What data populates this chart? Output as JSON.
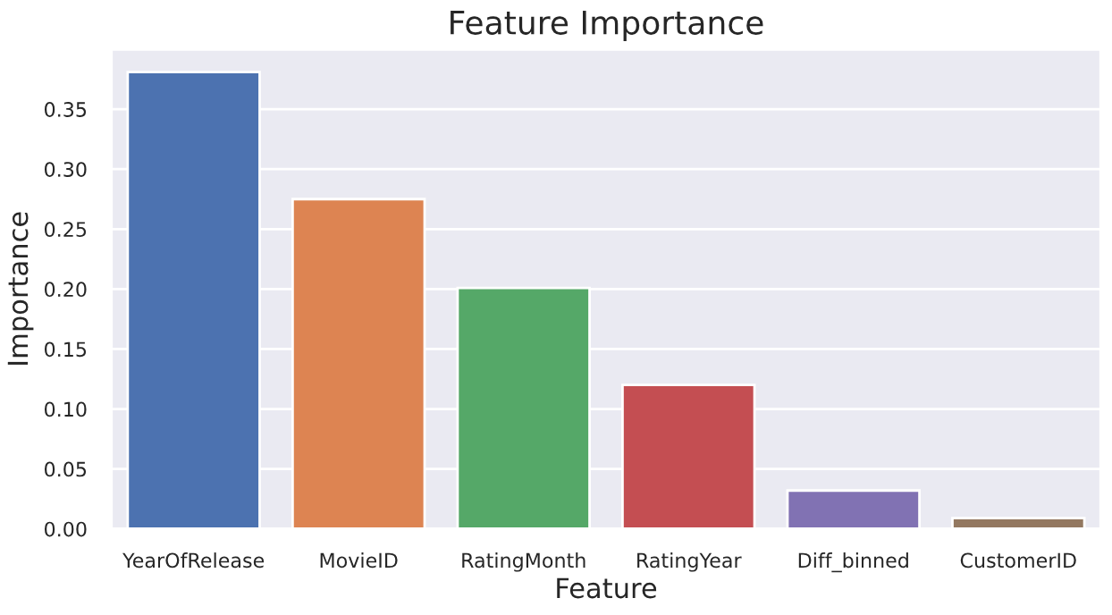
{
  "chart_data": {
    "type": "bar",
    "title": "Feature Importance",
    "xlabel": "Feature",
    "ylabel": "Importance",
    "categories": [
      "YearOfRelease",
      "MovieID",
      "RatingMonth",
      "RatingYear",
      "Diff_binned",
      "CustomerID"
    ],
    "values": [
      0.381,
      0.275,
      0.201,
      0.12,
      0.032,
      0.009
    ],
    "colors": [
      "#4c72b0",
      "#dd8452",
      "#55a868",
      "#c44e52",
      "#8172b3",
      "#937860"
    ],
    "ylim": [
      0,
      0.4
    ],
    "yticks": [
      {
        "value": 0,
        "label": "0.00"
      },
      0.05,
      {
        "value": 0.1,
        "label": "0.10"
      },
      0.15,
      {
        "value": 0.2,
        "label": "0.20"
      },
      0.25,
      {
        "value": 0.3,
        "label": "0.30"
      },
      0.35
    ],
    "grid": "y",
    "legend": false
  }
}
